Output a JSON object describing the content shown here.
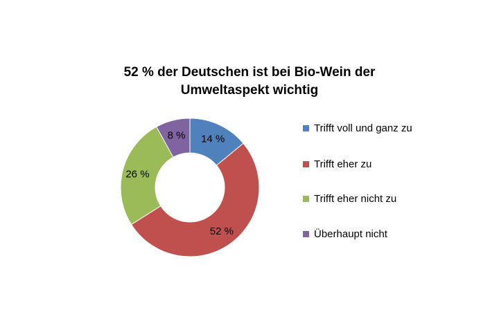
{
  "chart_data": {
    "type": "pie",
    "variant": "donut",
    "title_lines": [
      "52 % der Deutschen ist bei Bio-Wein der",
      "Umweltaspekt wichtig"
    ],
    "legend_position": "right",
    "slices": [
      {
        "name": "Trifft voll und ganz zu",
        "value": 14,
        "label": "14 %",
        "color": "#4F81BD"
      },
      {
        "name": "Trifft eher zu",
        "value": 52,
        "label": "52 %",
        "color": "#C0504D"
      },
      {
        "name": "Trifft eher nicht zu",
        "value": 26,
        "label": "26 %",
        "color": "#9BBB59"
      },
      {
        "name": "Überhaupt nicht",
        "value": 8,
        "label": "8 %",
        "color": "#8064A2"
      }
    ]
  }
}
